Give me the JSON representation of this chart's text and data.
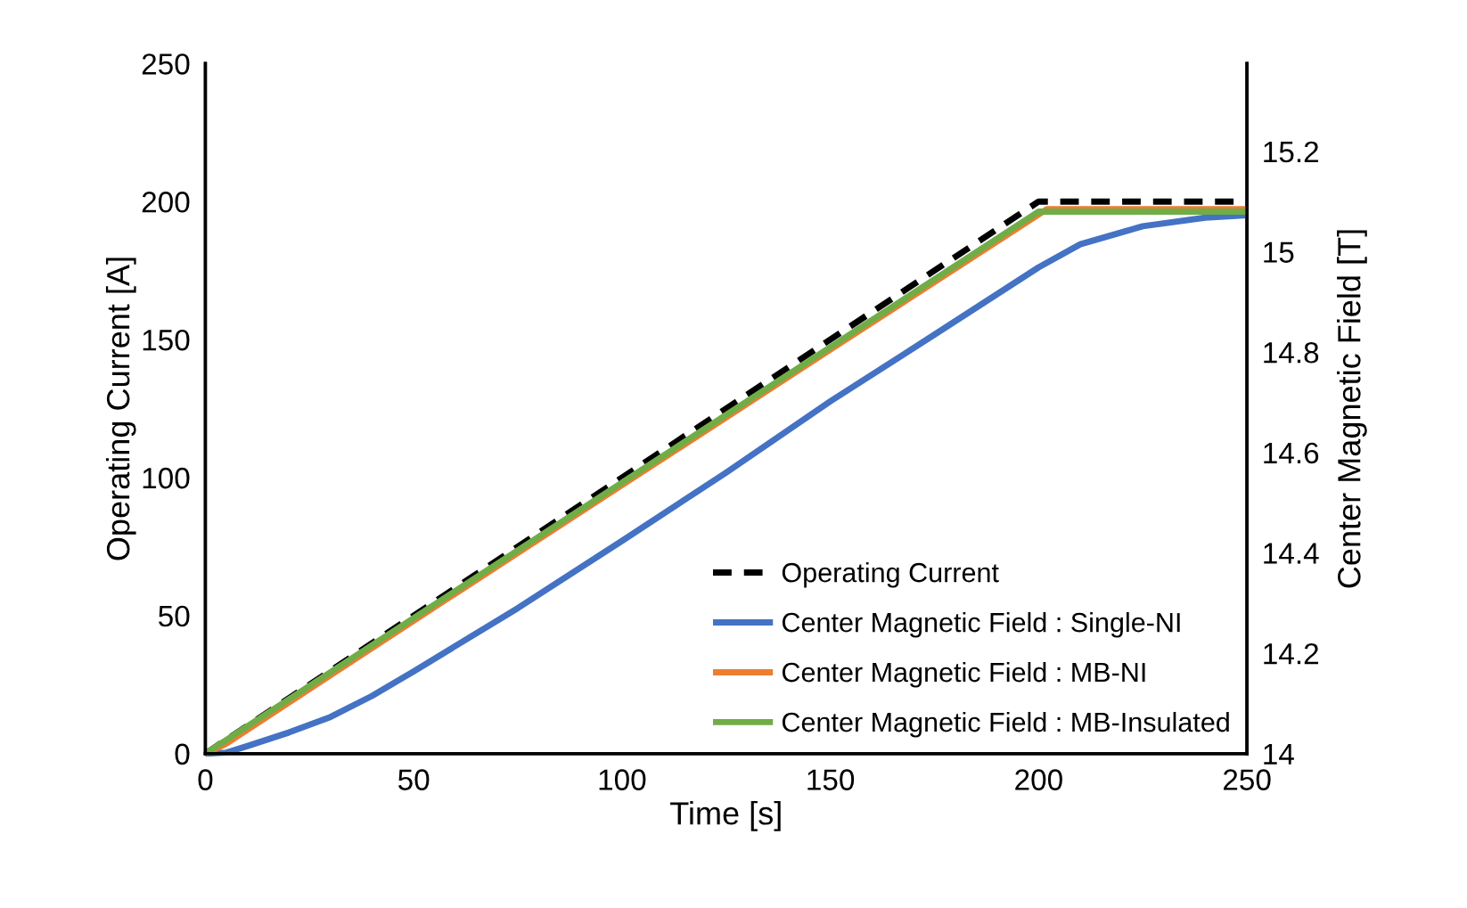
{
  "chart_data": {
    "type": "line",
    "xlabel": "Time [s]",
    "ylabel": "Operating Current [A]",
    "y2label": "Center Magnetic Field [T]",
    "xlim": [
      0,
      250
    ],
    "xticks": [
      0,
      50,
      100,
      150,
      200,
      250
    ],
    "ylim": [
      0,
      250
    ],
    "yticks": [
      0,
      50,
      100,
      150,
      200,
      250
    ],
    "y2lim": [
      14,
      15.375
    ],
    "y2ticks": [
      14,
      {
        "value": 14.2,
        "label": "14.2"
      },
      {
        "value": 14.4,
        "label": "14.4"
      },
      {
        "value": 14.6,
        "label": "14.6"
      },
      {
        "value": 14.8,
        "label": "14.8"
      },
      15,
      {
        "value": 15.2,
        "label": "15.2"
      }
    ],
    "grid": false,
    "legend": "bottom right",
    "marker": "none",
    "series": [
      {
        "name": "Operating Current",
        "color": "#000000",
        "line_style": "dashed",
        "x": [
          0,
          200,
          250
        ],
        "values": [
          0,
          200,
          200
        ]
      },
      {
        "name": "Center Magnetic Field : Single-NI",
        "color": "#4472c4",
        "axis": "y2",
        "x": [
          0,
          5,
          10,
          20,
          30,
          40,
          50,
          75,
          100,
          125,
          150,
          175,
          200,
          210,
          225,
          240,
          250
        ],
        "values": [
          14,
          14.002,
          14.015,
          14.042,
          14.073,
          14.115,
          14.164,
          14.29,
          14.424,
          14.56,
          14.702,
          14.835,
          14.969,
          15.015,
          15.051,
          15.068,
          15.073
        ]
      },
      {
        "name": "Center Magnetic Field : MB-NI",
        "color": "#ed7d31",
        "axis": "y2",
        "x": [
          0,
          5,
          50,
          100,
          150,
          202,
          250
        ],
        "values": [
          14,
          14.02,
          14.265,
          14.535,
          14.805,
          15.085,
          15.085
        ]
      },
      {
        "name": "Center Magnetic Field : MB-Insulated",
        "color": "#70ad47",
        "axis": "y2",
        "x": [
          0,
          50,
          100,
          150,
          200,
          250
        ],
        "values": [
          14,
          14.27,
          14.54,
          14.81,
          15.08,
          15.08
        ]
      }
    ]
  }
}
